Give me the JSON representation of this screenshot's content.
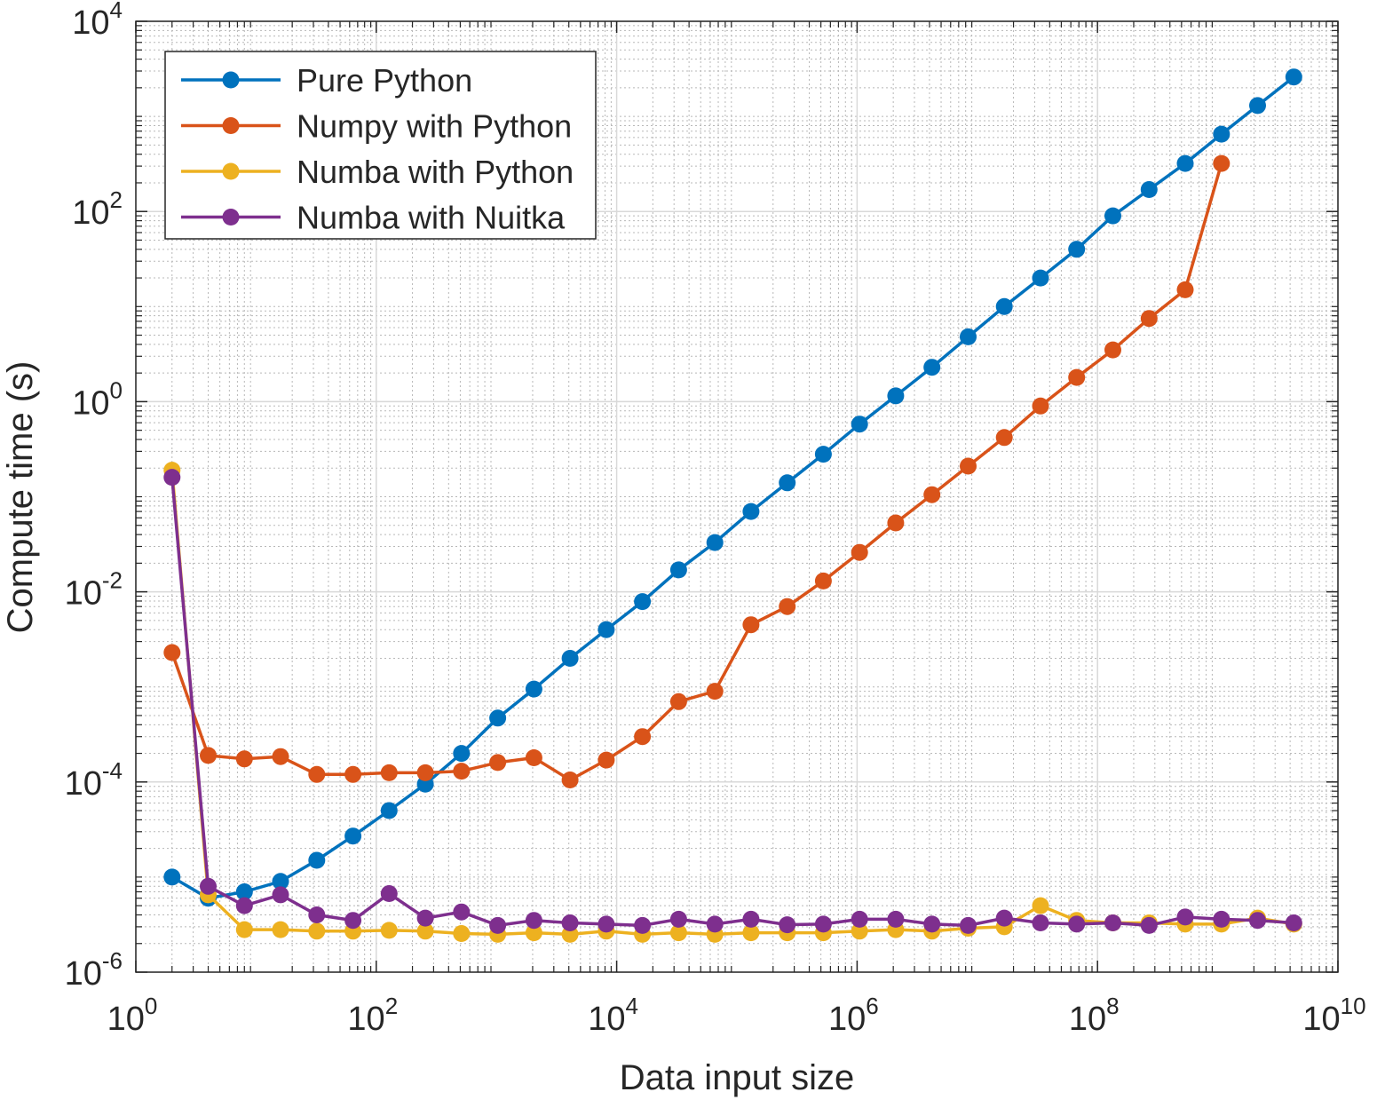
{
  "chart_data": {
    "type": "line",
    "title": "",
    "xlabel": "Data input size",
    "ylabel": "Compute time (s)",
    "xscale": "log",
    "yscale": "log",
    "xlim": [
      1,
      10000000000
    ],
    "ylim": [
      1e-06,
      10000
    ],
    "grid": true,
    "minor_grid": true,
    "legend_position": "top-left",
    "x_ticks": [
      {
        "value": 1,
        "base": "10",
        "exp": "0"
      },
      {
        "value": 100,
        "base": "10",
        "exp": "2"
      },
      {
        "value": 10000,
        "base": "10",
        "exp": "4"
      },
      {
        "value": 1000000,
        "base": "10",
        "exp": "6"
      },
      {
        "value": 100000000,
        "base": "10",
        "exp": "8"
      },
      {
        "value": 10000000000,
        "base": "10",
        "exp": "10"
      }
    ],
    "y_ticks": [
      {
        "value": 1e-06,
        "base": "10",
        "exp": "-6",
        "text": null
      },
      {
        "value": 0.0001,
        "base": "10",
        "exp": "-4",
        "text": null
      },
      {
        "value": 0.01,
        "base": "10",
        "exp": "-2",
        "text": null
      },
      {
        "value": 1,
        "base": "10",
        "exp": "0",
        "text": null
      },
      {
        "value": 100,
        "base": "10",
        "exp": "2",
        "text": null
      },
      {
        "value": 10000,
        "base": "10",
        "exp": "4",
        "text": null
      }
    ],
    "series": [
      {
        "name": "Pure Python",
        "color": "#0072BD",
        "x": [
          2,
          4,
          8,
          16,
          32,
          64,
          128,
          256,
          512,
          1024,
          2048,
          4096,
          8192,
          16384,
          32768,
          65536,
          131072,
          262144,
          524288,
          1048576,
          2097152,
          4194304,
          8388608,
          16777216,
          33554432,
          67108864,
          134217728,
          268435456,
          536870912,
          1073741824,
          2147483648,
          4294967296
        ],
        "values": [
          1e-05,
          6e-06,
          7e-06,
          9e-06,
          1.5e-05,
          2.7e-05,
          5e-05,
          9.5e-05,
          0.0002,
          0.00047,
          0.00095,
          0.002,
          0.004,
          0.0079,
          0.017,
          0.033,
          0.07,
          0.14,
          0.28,
          0.58,
          1.15,
          2.3,
          4.8,
          10,
          20,
          40,
          90,
          170,
          320,
          650,
          1300,
          2600
        ]
      },
      {
        "name": "Numpy with Python",
        "color": "#D95319",
        "x": [
          2,
          4,
          8,
          16,
          32,
          64,
          128,
          256,
          512,
          1024,
          2048,
          4096,
          8192,
          16384,
          32768,
          65536,
          131072,
          262144,
          524288,
          1048576,
          2097152,
          4194304,
          8388608,
          16777216,
          33554432,
          67108864,
          134217728,
          268435456,
          536870912,
          1073741824
        ],
        "values": [
          0.0023,
          0.00019,
          0.000175,
          0.000185,
          0.00012,
          0.00012,
          0.000125,
          0.000125,
          0.00013,
          0.00016,
          0.00018,
          0.000105,
          0.00017,
          0.0003,
          0.0007,
          0.0009,
          0.0045,
          0.007,
          0.013,
          0.026,
          0.053,
          0.105,
          0.21,
          0.42,
          0.9,
          1.8,
          3.5,
          7.5,
          15,
          320
        ]
      },
      {
        "name": "Numba with Python",
        "color": "#EDB120",
        "x": [
          2,
          4,
          8,
          16,
          32,
          64,
          128,
          256,
          512,
          1024,
          2048,
          4096,
          8192,
          16384,
          32768,
          65536,
          131072,
          262144,
          524288,
          1048576,
          2097152,
          4194304,
          8388608,
          16777216,
          33554432,
          67108864,
          134217728,
          268435456,
          536870912,
          1073741824,
          2147483648,
          4294967296
        ],
        "values": [
          0.19,
          6.5e-06,
          2.8e-06,
          2.8e-06,
          2.7e-06,
          2.7e-06,
          2.75e-06,
          2.7e-06,
          2.55e-06,
          2.5e-06,
          2.6e-06,
          2.5e-06,
          2.7e-06,
          2.5e-06,
          2.6e-06,
          2.5e-06,
          2.6e-06,
          2.6e-06,
          2.6e-06,
          2.7e-06,
          2.8e-06,
          2.7e-06,
          2.9e-06,
          3e-06,
          5e-06,
          3.5e-06,
          3.3e-06,
          3.3e-06,
          3.2e-06,
          3.2e-06,
          3.7e-06,
          3.2e-06
        ]
      },
      {
        "name": "Numba with Nuitka",
        "color": "#7E2F8E",
        "x": [
          2,
          4,
          8,
          16,
          32,
          64,
          128,
          256,
          512,
          1024,
          2048,
          4096,
          8192,
          16384,
          32768,
          65536,
          131072,
          262144,
          524288,
          1048576,
          2097152,
          4194304,
          8388608,
          16777216,
          33554432,
          67108864,
          134217728,
          268435456,
          536870912,
          1073741824,
          2147483648,
          4294967296
        ],
        "values": [
          0.16,
          8e-06,
          5e-06,
          6.5e-06,
          4e-06,
          3.5e-06,
          6.7e-06,
          3.7e-06,
          4.3e-06,
          3.1e-06,
          3.5e-06,
          3.3e-06,
          3.2e-06,
          3.1e-06,
          3.6e-06,
          3.2e-06,
          3.6e-06,
          3.15e-06,
          3.2e-06,
          3.6e-06,
          3.6e-06,
          3.2e-06,
          3.1e-06,
          3.7e-06,
          3.3e-06,
          3.2e-06,
          3.3e-06,
          3.1e-06,
          3.8e-06,
          3.6e-06,
          3.5e-06,
          3.3e-06
        ]
      }
    ]
  }
}
